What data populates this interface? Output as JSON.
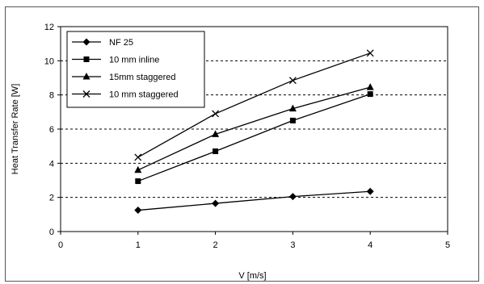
{
  "chart_data": {
    "type": "line",
    "title": "",
    "xlabel": "V [m/s]",
    "ylabel": "Heat Transfer Rate [W]",
    "xlim": [
      0,
      5
    ],
    "ylim": [
      0,
      12
    ],
    "xticks": [
      0,
      1,
      2,
      3,
      4,
      5
    ],
    "yticks": [
      0,
      2,
      4,
      6,
      8,
      10,
      12
    ],
    "grid": "horizontal dashed",
    "legend_position": "top-left",
    "series": [
      {
        "name": "NF 25",
        "marker": "diamond",
        "x": [
          1,
          2,
          3,
          4
        ],
        "y": [
          1.25,
          1.65,
          2.05,
          2.35
        ]
      },
      {
        "name": "10 mm inline",
        "marker": "square",
        "x": [
          1,
          2,
          3,
          4
        ],
        "y": [
          2.95,
          4.7,
          6.5,
          8.05
        ]
      },
      {
        "name": "15mm staggered",
        "marker": "triangle",
        "x": [
          1,
          2,
          3,
          4
        ],
        "y": [
          3.6,
          5.7,
          7.2,
          8.45
        ]
      },
      {
        "name": "10 mm staggered",
        "marker": "x",
        "x": [
          1,
          2,
          3,
          4
        ],
        "y": [
          4.35,
          6.9,
          8.85,
          10.45
        ]
      }
    ],
    "colors": {
      "line": "#000000",
      "grid": "#000000",
      "background": "#ffffff"
    }
  }
}
